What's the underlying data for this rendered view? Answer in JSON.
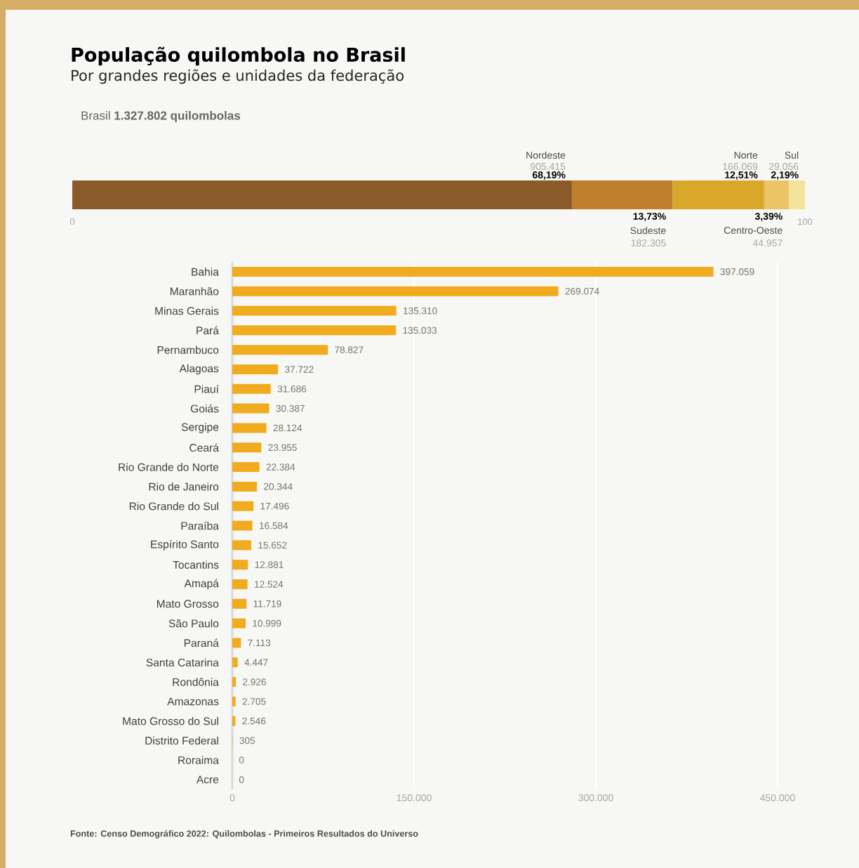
{
  "chart_data": [
    {
      "type": "bar",
      "orientation": "horizontal",
      "stacked": true,
      "title": "População quilombola no Brasil",
      "subtitle": "Por grandes regiões e unidades da federação",
      "annotations": [
        "Brasil **1.327.802 quilombolas**",
        "905.415",
        "182.305",
        "166.069",
        "44.957",
        "29.056"
      ],
      "categories": [
        null
      ],
      "xlim": [
        0,
        100
      ],
      "xticks": [
        0,
        100
      ],
      "series": [
        {
          "name": "Nordeste",
          "color": "#8a5a28",
          "values": [
            68.19
          ],
          "value_labels": [
            "68,19%"
          ]
        },
        {
          "name": "Sudeste",
          "color": "#c07f2d",
          "values": [
            13.73
          ],
          "value_labels": [
            "13,73%"
          ]
        },
        {
          "name": "Norte",
          "color": "#d9a82b",
          "values": [
            12.51
          ],
          "value_labels": [
            "12,51%"
          ]
        },
        {
          "name": "Centro-Oeste",
          "color": "#ebc467",
          "values": [
            3.39
          ],
          "value_labels": [
            "3,39%"
          ]
        },
        {
          "name": "Sul",
          "color": "#f4e39b",
          "values": [
            2.19
          ],
          "value_labels": [
            "2,19%"
          ]
        }
      ]
    },
    {
      "type": "bar",
      "orientation": "horizontal",
      "categories": [
        "Bahia",
        "Maranhão",
        "Minas Gerais",
        "Pará",
        "Pernambuco",
        "Alagoas",
        "Piauí",
        "Goiás",
        "Sergipe",
        "Ceará",
        "Rio Grande do Norte",
        "Rio de Janeiro",
        "Rio Grande do Sul",
        "Paraíba",
        "Espírito Santo",
        "Tocantins",
        "Amapá",
        "Mato Grosso",
        "São Paulo",
        "Paraná",
        "Santa Catarina",
        "Rondônia",
        "Amazonas",
        "Mato Grosso do Sul",
        "Distrito Federal",
        "Roraima",
        "Acre"
      ],
      "values": [
        397059,
        269074,
        135310,
        135033,
        78827,
        37722,
        31686,
        30387,
        28124,
        23955,
        22384,
        20344,
        17496,
        16584,
        15652,
        12881,
        12524,
        11719,
        10999,
        7113,
        4447,
        2926,
        2705,
        2546,
        305,
        0,
        0
      ],
      "value_labels": [
        "397.059",
        "269.074",
        "135.310",
        "135.033",
        "78.827",
        "37.722",
        "31.686",
        "30.387",
        "28.124",
        "23.955",
        "22.384",
        "20.344",
        "17.496",
        "16.584",
        "15.652",
        "12.881",
        "12.524",
        "11.719",
        "10.999",
        "7.113",
        "4.447",
        "2.926",
        "2.705",
        "2.546",
        "305",
        "0",
        "0"
      ],
      "color": "#f0ab1e",
      "xlim": [
        0,
        450000
      ],
      "xticks": [
        0,
        {
          "value": 150000,
          "label": "150.000"
        },
        {
          "value": 300000,
          "label": "300.000"
        },
        {
          "value": 450000,
          "label": "450.000"
        }
      ],
      "grid": "x",
      "annotations": [
        "Fonte: Censo Demográfico 2022: Quilombolas - Primeiros Resultados do Universo"
      ]
    }
  ]
}
